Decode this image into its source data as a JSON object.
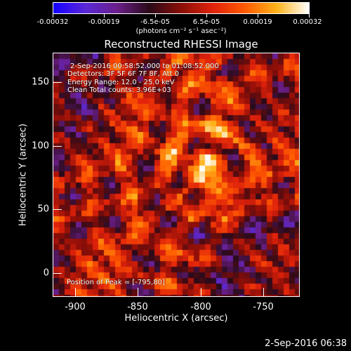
{
  "colorbar": {
    "tick_labels": [
      "-0.00032",
      "-0.00019",
      "-6.5e-05",
      "6.5e-05",
      "0.00019",
      "0.00032"
    ],
    "unit_label": "(photons cm⁻² s⁻¹ asec⁻²)",
    "colors": [
      "#1400ff",
      "#5a28d8",
      "#6b1f8a",
      "#2a0a19",
      "#8a0e08",
      "#e0220b",
      "#ff5a00",
      "#ffb31a",
      "#ffffff"
    ]
  },
  "figure": {
    "title": "Reconstructed RHESSI Image",
    "timestamp": "2-Sep-2016 06:38"
  },
  "annotations": {
    "time_range": "2-Sep-2016 00:58:52.000 to 01:08:52.000",
    "detectors": "Detectors: 3F 5F 6F 7F 8F, Att 0",
    "energy_range": "Energy Range: 12.0 - 25.0 keV",
    "method_counts": "Clean    Total counts: 3.96E+03",
    "peak_position": "Position of Peak = [-795,80]"
  },
  "chart_data": {
    "type": "heatmap",
    "xlabel": "Heliocentric X (arcsec)",
    "ylabel": "Heliocentric Y (arcsec)",
    "xlim": [
      -915,
      -723
    ],
    "ylim": [
      -18,
      172
    ],
    "x_ticks": [
      -900,
      -850,
      -800,
      -750
    ],
    "y_ticks": [
      0,
      50,
      100,
      150
    ],
    "grid": false,
    "colorbar_range": [
      -0.00032,
      0.00032
    ],
    "peak": [
      -795,
      80
    ]
  }
}
